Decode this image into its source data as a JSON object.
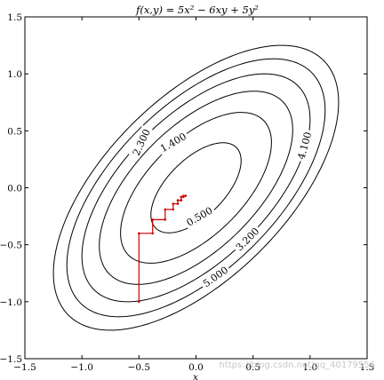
{
  "chart_data": {
    "type": "contour",
    "title": "f(x,y) = 5x² − 6xy + 5y²",
    "function": "5x^2 - 6xy + 5y^2",
    "xlim": [
      -1.5,
      1.5
    ],
    "ylim": [
      -1.5,
      1.5
    ],
    "x_ticks": [
      "−1.5",
      "−1.0",
      "−0.5",
      "0.0",
      "0.5",
      "1.0",
      "1.5"
    ],
    "y_ticks": [
      "1.5",
      "1.0",
      "0.5",
      "0.0",
      "−0.5",
      "−1.0",
      "−1.5"
    ],
    "x_tick_values": [
      -1.5,
      -1.0,
      -0.5,
      0.0,
      0.5,
      1.0,
      1.5
    ],
    "y_tick_values": [
      1.5,
      1.0,
      0.5,
      0.0,
      -0.5,
      -1.0,
      -1.5
    ],
    "xlabel": "x",
    "ylabel": "",
    "grid": false,
    "contour_levels": [
      0.5,
      1.4,
      2.3,
      3.2,
      4.1,
      5.0
    ],
    "contour_labels": [
      {
        "text": "0.500",
        "x": 0.03,
        "y": -0.25,
        "angle": -30
      },
      {
        "text": "1.400",
        "x": -0.2,
        "y": 0.4,
        "angle": -30
      },
      {
        "text": "2.300",
        "x": -0.48,
        "y": 0.4,
        "angle": -65
      },
      {
        "text": "3.200",
        "x": 0.45,
        "y": -0.45,
        "angle": -45
      },
      {
        "text": "4.100",
        "x": 0.95,
        "y": 0.37,
        "angle": -75
      },
      {
        "text": "5.000",
        "x": 0.17,
        "y": -0.78,
        "angle": -35
      }
    ],
    "colors": {
      "contour": "#000000",
      "path": "#cc0000"
    },
    "path": [
      [
        -0.5,
        -1.0
      ],
      [
        -0.5,
        -0.4
      ],
      [
        -0.38,
        -0.4
      ],
      [
        -0.38,
        -0.28
      ],
      [
        -0.27,
        -0.28
      ],
      [
        -0.27,
        -0.19
      ],
      [
        -0.2,
        -0.19
      ],
      [
        -0.2,
        -0.14
      ],
      [
        -0.16,
        -0.14
      ],
      [
        -0.16,
        -0.11
      ],
      [
        -0.13,
        -0.11
      ],
      [
        -0.13,
        -0.08
      ],
      [
        -0.11,
        -0.08
      ],
      [
        -0.11,
        -0.07
      ],
      [
        -0.09,
        -0.07
      ]
    ]
  },
  "watermark": "https://blog.csdn.net/qq_40179556"
}
